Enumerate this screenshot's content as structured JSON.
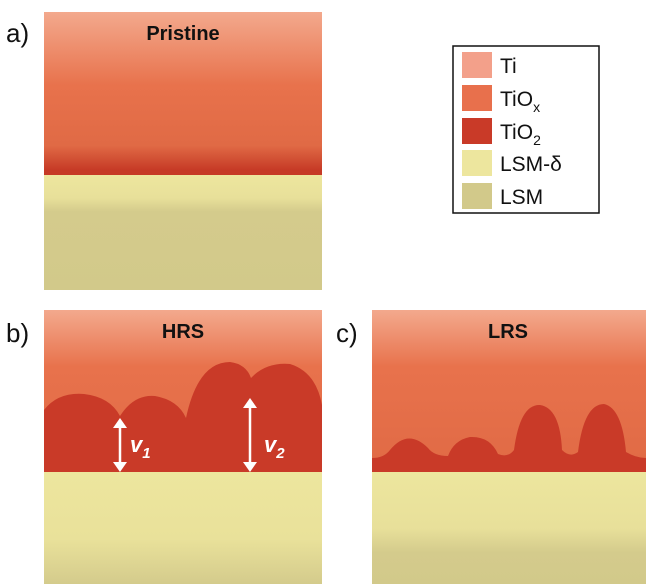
{
  "panels": [
    {
      "letter": "a)",
      "title": "Pristine"
    },
    {
      "letter": "b)",
      "title": "HRS"
    },
    {
      "letter": "c)",
      "title": "LRS"
    }
  ],
  "legend": [
    {
      "label": "Ti"
    },
    {
      "label": "TiO",
      "sub": "x"
    },
    {
      "label": "TiO",
      "sub": "2"
    },
    {
      "label": "LSM-δ"
    },
    {
      "label": "LSM"
    }
  ],
  "arrows": [
    {
      "label": "v",
      "sub": "1"
    },
    {
      "label": "v",
      "sub": "2"
    }
  ]
}
